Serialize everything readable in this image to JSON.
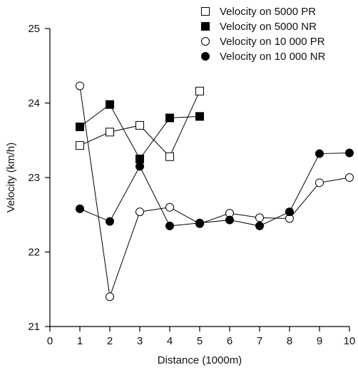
{
  "chart_data": {
    "type": "line",
    "xlabel": "Distance (1000m)",
    "ylabel": "Velocity (km/h)",
    "xlim": [
      0,
      10
    ],
    "ylim": [
      21,
      25
    ],
    "x_ticks": [
      "0",
      "1",
      "2",
      "3",
      "4",
      "5",
      "6",
      "7",
      "8",
      "9",
      "10"
    ],
    "y_ticks": [
      "21",
      "22",
      "23",
      "24",
      "25"
    ],
    "grid": false,
    "legend_position": "top-right",
    "series": [
      {
        "name": "Velocity on 5000 PR",
        "marker": "open-square",
        "x": [
          1,
          2,
          3,
          4,
          5
        ],
        "values": [
          23.43,
          23.61,
          23.7,
          23.28,
          24.16
        ]
      },
      {
        "name": "Velocity on 5000 NR",
        "marker": "filled-square",
        "x": [
          1,
          2,
          3,
          4,
          5
        ],
        "values": [
          23.68,
          23.98,
          23.25,
          23.8,
          23.82
        ]
      },
      {
        "name": "Velocity on 10 000 PR",
        "marker": "open-circle",
        "x": [
          1,
          2,
          3,
          4,
          5,
          6,
          7,
          8,
          9,
          10
        ],
        "values": [
          24.23,
          21.4,
          22.54,
          22.6,
          22.38,
          22.52,
          22.46,
          22.45,
          22.93,
          23.0
        ]
      },
      {
        "name": "Velocity on 10 000 NR",
        "marker": "filled-circle",
        "x": [
          1,
          2,
          3,
          4,
          5,
          6,
          7,
          8,
          9,
          10
        ],
        "values": [
          22.58,
          22.41,
          23.15,
          22.35,
          22.39,
          22.43,
          22.35,
          22.54,
          23.32,
          23.33
        ]
      }
    ]
  }
}
